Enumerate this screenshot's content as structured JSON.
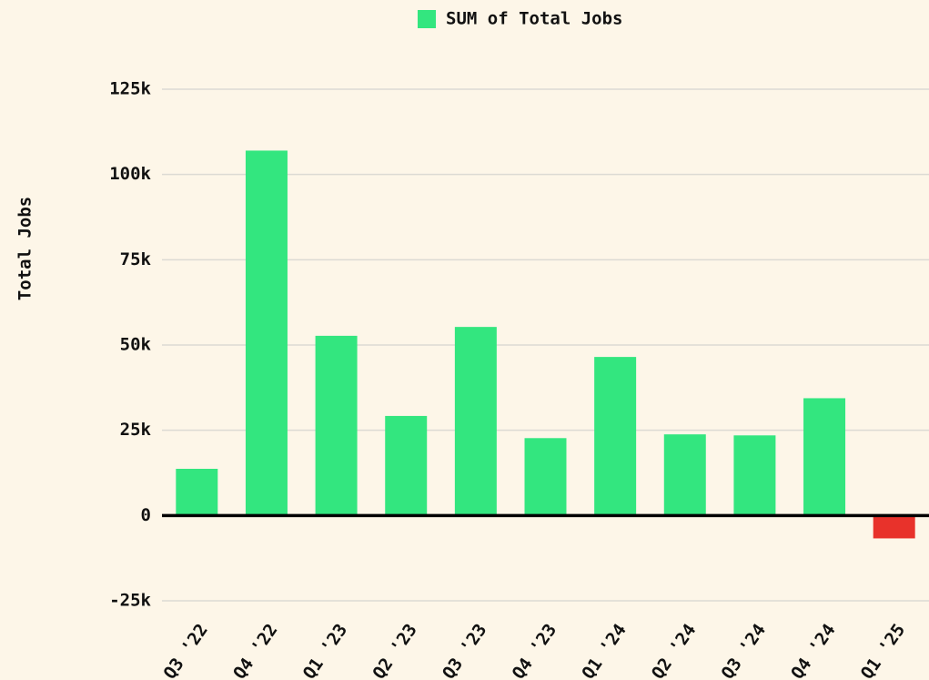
{
  "chart_data": {
    "type": "bar",
    "y_label": "Total Jobs",
    "categories": [
      "Q3 '22",
      "Q4 '22",
      "Q1 '23",
      "Q2 '23",
      "Q3 '23",
      "Q4 '23",
      "Q1 '24",
      "Q2 '24",
      "Q3 '24",
      "Q4 '24",
      "Q1 '25"
    ],
    "series": [
      {
        "name": "SUM of Total Jobs",
        "color": "#33e67f",
        "negative_color": "#e8322b",
        "values": [
          13700,
          107000,
          52700,
          29200,
          55300,
          22700,
          46500,
          23800,
          23500,
          34400,
          -6700
        ]
      }
    ],
    "ylim": [
      -25000,
      125000
    ],
    "yticks": [
      {
        "value": -25000,
        "label": "-25k"
      },
      0,
      {
        "value": 25000,
        "label": "25k"
      },
      {
        "value": 50000,
        "label": "50k"
      },
      {
        "value": 75000,
        "label": "75k"
      },
      {
        "value": 100000,
        "label": "100k"
      },
      {
        "value": 125000,
        "label": "125k"
      }
    ],
    "grid": true,
    "legend": "top"
  }
}
